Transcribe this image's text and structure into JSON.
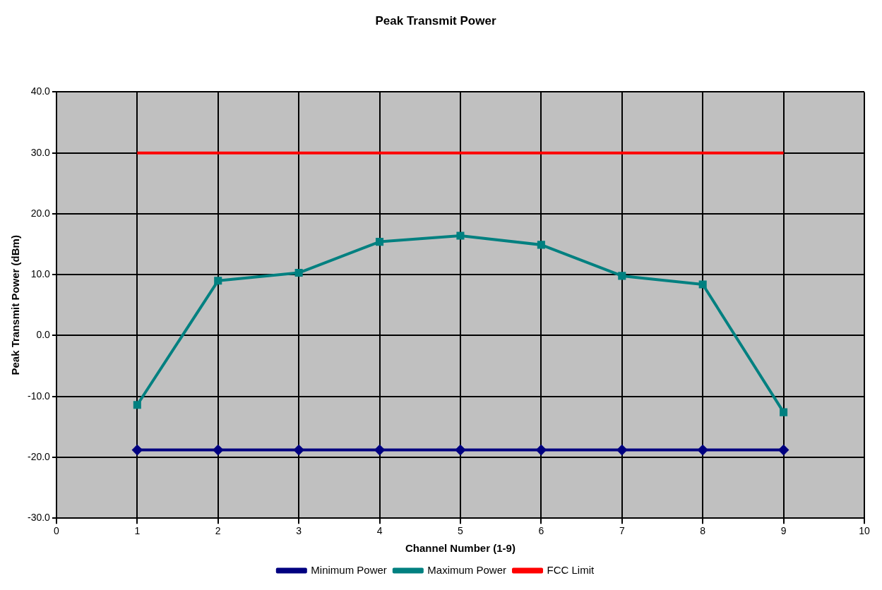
{
  "chart_data": {
    "type": "line",
    "title": "Peak Transmit Power",
    "xlabel": "Channel Number (1-9)",
    "ylabel": "Peak Transmit Power (dBm)",
    "x": [
      1,
      2,
      3,
      4,
      5,
      6,
      7,
      8,
      9
    ],
    "series": [
      {
        "name": "Minimum Power",
        "color": "#000080",
        "marker": "diamond",
        "values": [
          -18.8,
          -18.8,
          -18.8,
          -18.8,
          -18.8,
          -18.8,
          -18.8,
          -18.8,
          -18.8
        ]
      },
      {
        "name": "Maximum Power",
        "color": "#008080",
        "marker": "square",
        "values": [
          -11.4,
          9.0,
          10.3,
          15.4,
          16.4,
          14.9,
          9.8,
          8.4,
          -12.6
        ]
      },
      {
        "name": "FCC Limit",
        "color": "#ff0000",
        "marker": "none",
        "values": [
          30,
          30,
          30,
          30,
          30,
          30,
          30,
          30,
          30
        ]
      }
    ],
    "xlim": [
      0,
      10
    ],
    "xticks": [
      0,
      1,
      2,
      3,
      4,
      5,
      6,
      7,
      8,
      9,
      10
    ],
    "ylim": [
      -30,
      40
    ],
    "yticks": [
      {
        "value": -30,
        "label": "-30.0"
      },
      {
        "value": -20,
        "label": "-20.0"
      },
      {
        "value": -10,
        "label": "-10.0"
      },
      {
        "value": 0,
        "label": "0.0"
      },
      {
        "value": 10,
        "label": "10.0"
      },
      {
        "value": 20,
        "label": "20.0"
      },
      {
        "value": 30,
        "label": "30.0"
      },
      {
        "value": 40,
        "label": "40.0"
      }
    ],
    "grid": true,
    "legend": "bottom"
  }
}
